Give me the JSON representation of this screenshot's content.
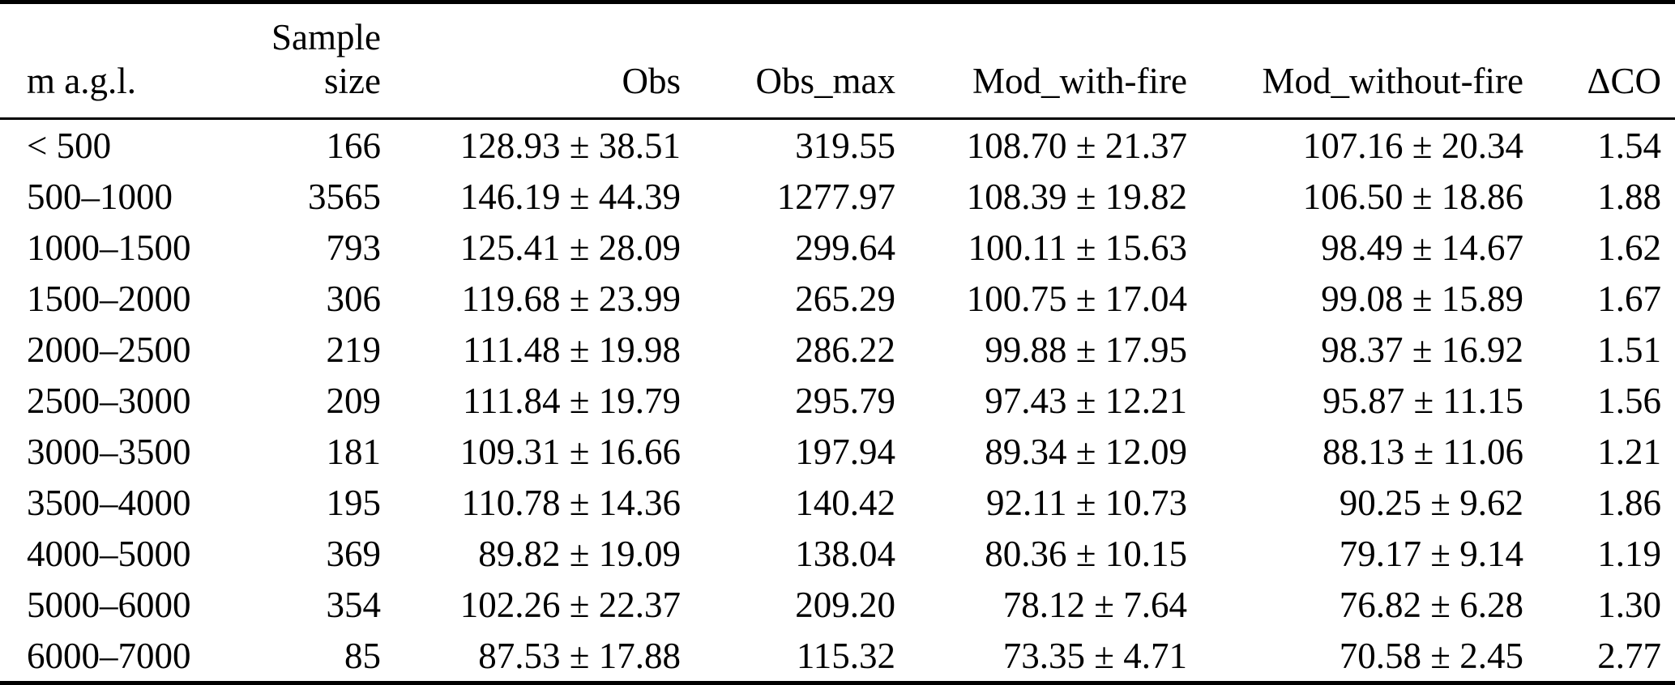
{
  "table": {
    "columns": [
      {
        "key": "magl",
        "label": "m a.g.l.",
        "align": "left"
      },
      {
        "key": "sample_size",
        "label": "Sample size",
        "label_lines": [
          "Sample",
          "size"
        ],
        "align": "right"
      },
      {
        "key": "obs",
        "label": "Obs",
        "align": "right"
      },
      {
        "key": "obs_max",
        "label": "Obs_max",
        "align": "right"
      },
      {
        "key": "mod_with_fire",
        "label": "Mod_with-fire",
        "align": "right"
      },
      {
        "key": "mod_without_fire",
        "label": "Mod_without-fire",
        "align": "right"
      },
      {
        "key": "delta_co",
        "label": "ΔCO",
        "align": "right"
      }
    ],
    "rows": [
      [
        "< 500",
        "166",
        "128.93 ± 38.51",
        "319.55",
        "108.70 ± 21.37",
        "107.16 ± 20.34",
        "1.54"
      ],
      [
        "500–1000",
        "3565",
        "146.19 ± 44.39",
        "1277.97",
        "108.39 ± 19.82",
        "106.50 ± 18.86",
        "1.88"
      ],
      [
        "1000–1500",
        "793",
        "125.41 ± 28.09",
        "299.64",
        "100.11 ± 15.63",
        "98.49 ± 14.67",
        "1.62"
      ],
      [
        "1500–2000",
        "306",
        "119.68 ± 23.99",
        "265.29",
        "100.75 ± 17.04",
        "99.08 ± 15.89",
        "1.67"
      ],
      [
        "2000–2500",
        "219",
        "111.48 ± 19.98",
        "286.22",
        "99.88 ± 17.95",
        "98.37 ± 16.92",
        "1.51"
      ],
      [
        "2500–3000",
        "209",
        "111.84 ± 19.79",
        "295.79",
        "97.43 ± 12.21",
        "95.87 ± 11.15",
        "1.56"
      ],
      [
        "3000–3500",
        "181",
        "109.31 ± 16.66",
        "197.94",
        "89.34 ± 12.09",
        "88.13 ± 11.06",
        "1.21"
      ],
      [
        "3500–4000",
        "195",
        "110.78 ± 14.36",
        "140.42",
        "92.11 ± 10.73",
        "90.25 ± 9.62",
        "1.86"
      ],
      [
        "4000–5000",
        "369",
        "89.82 ± 19.09",
        "138.04",
        "80.36 ± 10.15",
        "79.17 ± 9.14",
        "1.19"
      ],
      [
        "5000–6000",
        "354",
        "102.26 ± 22.37",
        "209.20",
        "78.12 ± 7.64",
        "76.82 ± 6.28",
        "1.30"
      ],
      [
        "6000–7000",
        "85",
        "87.53 ± 17.88",
        "115.32",
        "73.35 ± 4.71",
        "70.58 ± 2.45",
        "2.77"
      ]
    ]
  }
}
